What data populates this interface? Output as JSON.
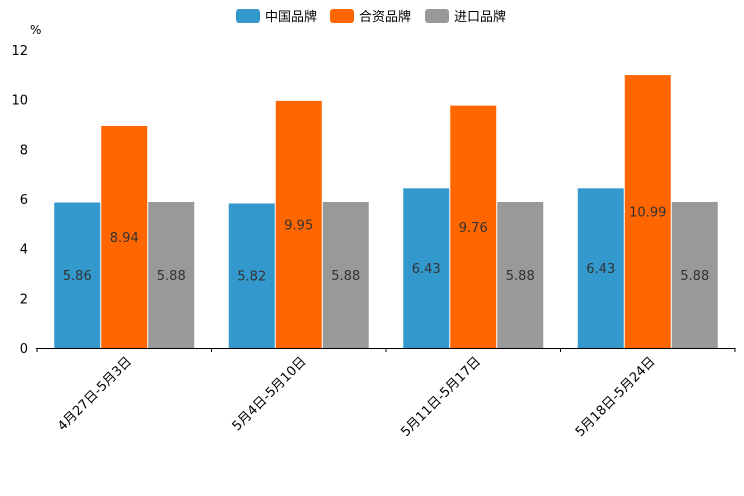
{
  "chart_data": {
    "type": "bar",
    "unit": "%",
    "categories": [
      "4月27日-5月3日",
      "5月4日-5月10日",
      "5月11日-5月17日",
      "5月18日-5月24日"
    ],
    "series": [
      {
        "name": "中国品牌",
        "color": "#3399cc",
        "values": [
          5.86,
          5.82,
          6.43,
          6.43
        ],
        "labels": [
          "5.86",
          "5.82",
          "6.43",
          "6.43"
        ]
      },
      {
        "name": "合资品牌",
        "color": "#ff6600",
        "values": [
          8.94,
          9.95,
          9.76,
          10.99
        ],
        "labels": [
          "8.94",
          "9.95",
          "9.76",
          "10.99"
        ]
      },
      {
        "name": "进口品牌",
        "color": "#999999",
        "values": [
          5.88,
          5.88,
          5.88,
          5.88
        ],
        "labels": [
          "5.88",
          "5.88",
          "5.88",
          "5.88"
        ]
      }
    ],
    "ylim": [
      0,
      12
    ],
    "yticks": [
      "0",
      "2",
      "4",
      "6",
      "8",
      "10",
      "12"
    ],
    "legend_position": "top-center"
  }
}
